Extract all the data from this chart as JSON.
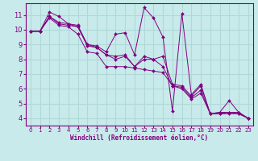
{
  "background_color": "#c8eaea",
  "grid_color": "#b0d8d8",
  "line_color": "#800080",
  "marker_color": "#800080",
  "text_color": "#800080",
  "xlabel": "Windchill (Refroidissement éolien,°C)",
  "xlim": [
    -0.5,
    23.5
  ],
  "ylim": [
    3.5,
    11.8
  ],
  "yticks": [
    4,
    5,
    6,
    7,
    8,
    9,
    10,
    11
  ],
  "xticks": [
    0,
    1,
    2,
    3,
    4,
    5,
    6,
    7,
    8,
    9,
    10,
    11,
    12,
    13,
    14,
    15,
    16,
    17,
    18,
    19,
    20,
    21,
    22,
    23
  ],
  "series": [
    [
      9.9,
      9.9,
      11.2,
      10.9,
      10.4,
      10.3,
      9.0,
      8.9,
      8.5,
      9.7,
      9.8,
      8.3,
      11.5,
      10.8,
      9.5,
      4.5,
      11.1,
      5.6,
      6.3,
      4.3,
      4.4,
      4.4,
      4.4,
      4.0
    ],
    [
      9.9,
      9.9,
      10.9,
      10.5,
      10.4,
      10.2,
      9.0,
      8.8,
      8.3,
      8.2,
      8.3,
      7.5,
      8.2,
      8.0,
      8.2,
      6.3,
      6.2,
      5.5,
      6.2,
      4.3,
      4.4,
      5.2,
      4.4,
      4.0
    ],
    [
      9.9,
      9.9,
      10.9,
      10.4,
      10.3,
      10.2,
      8.9,
      8.8,
      8.3,
      8.0,
      8.2,
      7.5,
      8.0,
      8.0,
      7.5,
      6.2,
      6.1,
      5.4,
      5.9,
      4.3,
      4.3,
      4.4,
      4.3,
      4.0
    ],
    [
      9.9,
      9.9,
      10.8,
      10.3,
      10.2,
      9.7,
      8.5,
      8.4,
      7.5,
      7.5,
      7.5,
      7.4,
      7.3,
      7.2,
      7.1,
      6.2,
      6.0,
      5.3,
      5.7,
      4.3,
      4.3,
      4.3,
      4.3,
      4.0
    ]
  ]
}
